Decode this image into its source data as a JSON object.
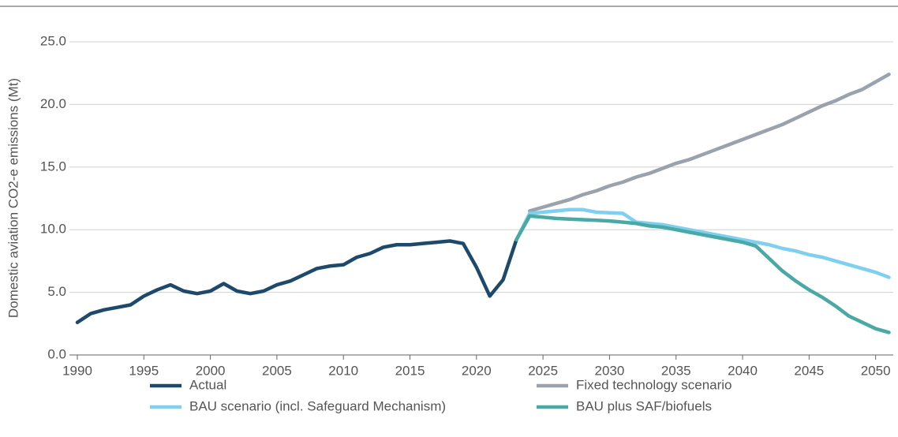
{
  "chart_data": {
    "type": "line",
    "y_label": "Domestic aviation CO2-e emissions (Mt)",
    "x": [
      1990,
      1991,
      1992,
      1993,
      1994,
      1995,
      1996,
      1997,
      1998,
      1999,
      2000,
      2001,
      2002,
      2003,
      2004,
      2005,
      2006,
      2007,
      2008,
      2009,
      2010,
      2011,
      2012,
      2013,
      2014,
      2015,
      2016,
      2017,
      2018,
      2019,
      2020,
      2021,
      2022,
      2023,
      2024,
      2025,
      2026,
      2027,
      2028,
      2029,
      2030,
      2031,
      2032,
      2033,
      2034,
      2035,
      2036,
      2037,
      2038,
      2039,
      2040,
      2041,
      2042,
      2043,
      2044,
      2045,
      2046,
      2047,
      2048,
      2049,
      2050,
      2051
    ],
    "series": [
      {
        "name": "Actual",
        "color": "#1d4a6b",
        "values": [
          2.6,
          3.3,
          3.6,
          3.8,
          4.0,
          4.7,
          5.2,
          5.6,
          5.1,
          4.9,
          5.1,
          5.7,
          5.1,
          4.9,
          5.1,
          5.6,
          5.9,
          6.4,
          6.9,
          7.1,
          7.2,
          7.8,
          8.1,
          8.6,
          8.8,
          8.8,
          8.9,
          9.0,
          9.1,
          8.9,
          7.0,
          4.7,
          6.0,
          9.2,
          null,
          null,
          null,
          null,
          null,
          null,
          null,
          null,
          null,
          null,
          null,
          null,
          null,
          null,
          null,
          null,
          null,
          null,
          null,
          null,
          null,
          null,
          null,
          null,
          null,
          null,
          null,
          null
        ]
      },
      {
        "name": "Fixed technology scenario",
        "color": "#9aa2ad",
        "values": [
          null,
          null,
          null,
          null,
          null,
          null,
          null,
          null,
          null,
          null,
          null,
          null,
          null,
          null,
          null,
          null,
          null,
          null,
          null,
          null,
          null,
          null,
          null,
          null,
          null,
          null,
          null,
          null,
          null,
          null,
          null,
          null,
          null,
          null,
          11.5,
          11.8,
          12.1,
          12.4,
          12.8,
          13.1,
          13.5,
          13.8,
          14.2,
          14.5,
          14.9,
          15.3,
          15.6,
          16.0,
          16.4,
          16.8,
          17.2,
          17.6,
          18.0,
          18.4,
          18.9,
          19.4,
          19.9,
          20.3,
          20.8,
          21.2,
          21.8,
          22.4
        ]
      },
      {
        "name": "BAU scenario (incl. Safeguard Mechanism)",
        "color": "#7fd0ef",
        "values": [
          null,
          null,
          null,
          null,
          null,
          null,
          null,
          null,
          null,
          null,
          null,
          null,
          null,
          null,
          null,
          null,
          null,
          null,
          null,
          null,
          null,
          null,
          null,
          null,
          null,
          null,
          null,
          null,
          null,
          null,
          null,
          null,
          null,
          9.2,
          11.3,
          11.4,
          11.5,
          11.6,
          11.6,
          11.4,
          11.35,
          11.3,
          10.6,
          10.5,
          10.4,
          10.2,
          10.0,
          9.8,
          9.6,
          9.4,
          9.2,
          9.0,
          8.8,
          8.5,
          8.3,
          8.0,
          7.8,
          7.5,
          7.2,
          6.9,
          6.6,
          6.2
        ]
      },
      {
        "name": "BAU plus SAF/biofuels",
        "color": "#4aa9a4",
        "values": [
          null,
          null,
          null,
          null,
          null,
          null,
          null,
          null,
          null,
          null,
          null,
          null,
          null,
          null,
          null,
          null,
          null,
          null,
          null,
          null,
          null,
          null,
          null,
          null,
          null,
          null,
          null,
          null,
          null,
          null,
          null,
          null,
          null,
          9.2,
          11.1,
          11.0,
          10.9,
          10.85,
          10.8,
          10.75,
          10.7,
          10.6,
          10.5,
          10.3,
          10.2,
          10.0,
          9.8,
          9.6,
          9.4,
          9.2,
          9.0,
          8.7,
          7.7,
          6.7,
          5.9,
          5.2,
          4.6,
          3.9,
          3.1,
          2.6,
          2.1,
          1.8
        ]
      }
    ],
    "xlim": [
      1990,
      2051
    ],
    "xticks": [
      1990,
      1995,
      2000,
      2005,
      2010,
      2015,
      2020,
      2025,
      2030,
      2035,
      2040,
      2045,
      2050
    ],
    "ylim": [
      0,
      25
    ],
    "yticks": [
      {
        "value": 0,
        "label": "0.0"
      },
      {
        "value": 5,
        "label": "5.0"
      },
      {
        "value": 10,
        "label": "10.0"
      },
      {
        "value": 15,
        "label": "15.0"
      },
      {
        "value": 20,
        "label": "20.0"
      },
      {
        "value": 25,
        "label": "25.0"
      }
    ],
    "grid": true
  }
}
